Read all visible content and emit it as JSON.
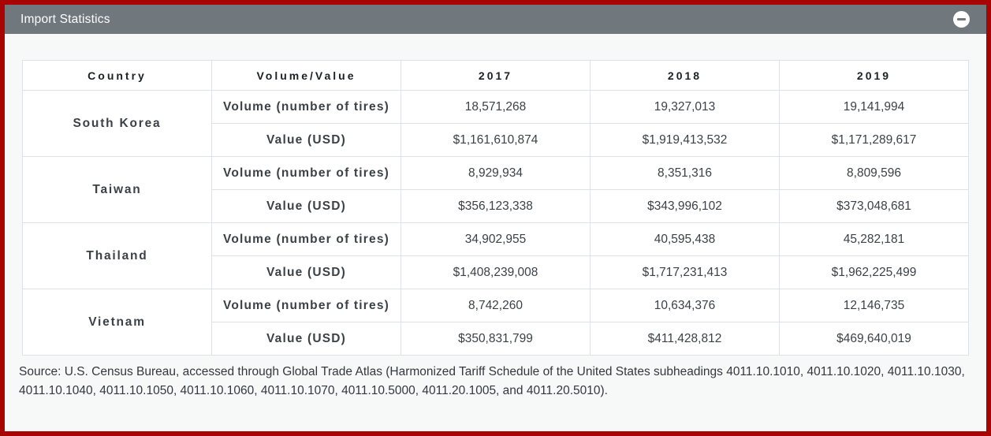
{
  "panel": {
    "title": "Import Statistics",
    "collapse_icon": "minus-circle-icon"
  },
  "table": {
    "columns": [
      "Country",
      "Volume/Value",
      "2017",
      "2018",
      "2019"
    ],
    "volume_label": "Volume (number of tires)",
    "value_label": "Value (USD)",
    "rows": [
      {
        "country": "South Korea",
        "volume": [
          "18,571,268",
          "19,327,013",
          "19,141,994"
        ],
        "value": [
          "$1,161,610,874",
          "$1,919,413,532",
          "$1,171,289,617"
        ]
      },
      {
        "country": "Taiwan",
        "volume": [
          "8,929,934",
          "8,351,316",
          "8,809,596"
        ],
        "value": [
          "$356,123,338",
          "$343,996,102",
          "$373,048,681"
        ]
      },
      {
        "country": "Thailand",
        "volume": [
          "34,902,955",
          "40,595,438",
          "45,282,181"
        ],
        "value": [
          "$1,408,239,008",
          "$1,717,231,413",
          "$1,962,225,499"
        ]
      },
      {
        "country": "Vietnam",
        "volume": [
          "8,742,260",
          "10,634,376",
          "12,146,735"
        ],
        "value": [
          "$350,831,799",
          "$411,428,812",
          "$469,640,019"
        ]
      }
    ]
  },
  "source_note": "Source: U.S. Census Bureau, accessed through Global Trade Atlas (Harmonized Tariff Schedule of the United States subheadings 4011.10.1010, 4011.10.1020, 4011.10.1030, 4011.10.1040, 4011.10.1050, 4011.10.1060, 4011.10.1070, 4011.10.5000, 4011.20.1005, and 4011.20.5010).",
  "colors": {
    "frame_border_red": "#a80404",
    "panel_header_gray": "#70777d",
    "page_background": "#f7f9f9",
    "table_border": "#dee2e6",
    "heading_text": "#1c2024",
    "cell_text": "#3c4146"
  }
}
